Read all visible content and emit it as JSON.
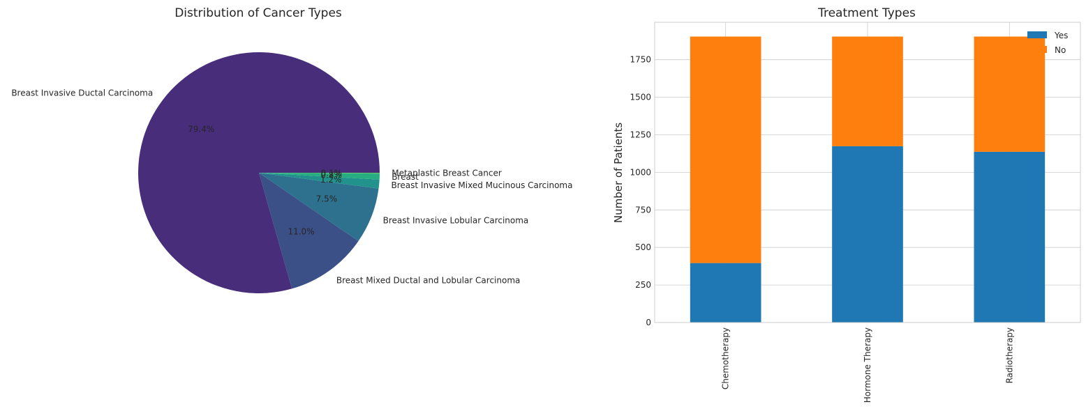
{
  "chart_data": [
    {
      "type": "pie",
      "title": "Distribution of Cancer Types",
      "slices": [
        {
          "label": "Breast Invasive Ductal Carcinoma",
          "value": 79.4,
          "pct_label": "79.4%",
          "color": "#482d7b"
        },
        {
          "label": "Breast Mixed Ductal and Lobular Carcinoma",
          "value": 11.0,
          "pct_label": "11.0%",
          "color": "#3c5088"
        },
        {
          "label": "Breast Invasive Lobular Carcinoma",
          "value": 7.5,
          "pct_label": "7.5%",
          "color": "#2d718e"
        },
        {
          "label": "Breast Invasive Mixed Mucinous Carcinoma",
          "value": 1.2,
          "pct_label": "1.2%",
          "color": "#21928c"
        },
        {
          "label": "Breast",
          "value": 0.8,
          "pct_label": "0.8%",
          "color": "#27ad81"
        },
        {
          "label": "Metaplastic Breast Cancer",
          "value": 0.1,
          "pct_label": "0.1%",
          "color": "#5cc863"
        }
      ],
      "start_angle": 0,
      "direction": "counterclockwise"
    },
    {
      "type": "bar",
      "stacked": true,
      "title": "Treatment Types",
      "xlabel": "",
      "ylabel": "Number of Patients",
      "categories": [
        "Chemotherapy",
        "Hormone Therapy",
        "Radiotherapy"
      ],
      "series": [
        {
          "name": "Yes",
          "values": [
            396,
            1174,
            1137
          ],
          "color": "#1f77b4"
        },
        {
          "name": "No",
          "values": [
            1508,
            730,
            767
          ],
          "color": "#ff7f0e"
        }
      ],
      "ylim": [
        0,
        1999
      ],
      "yticks": [
        0,
        250,
        500,
        750,
        1000,
        1250,
        1500,
        1750
      ],
      "grid": true,
      "legend": "top-right"
    }
  ]
}
